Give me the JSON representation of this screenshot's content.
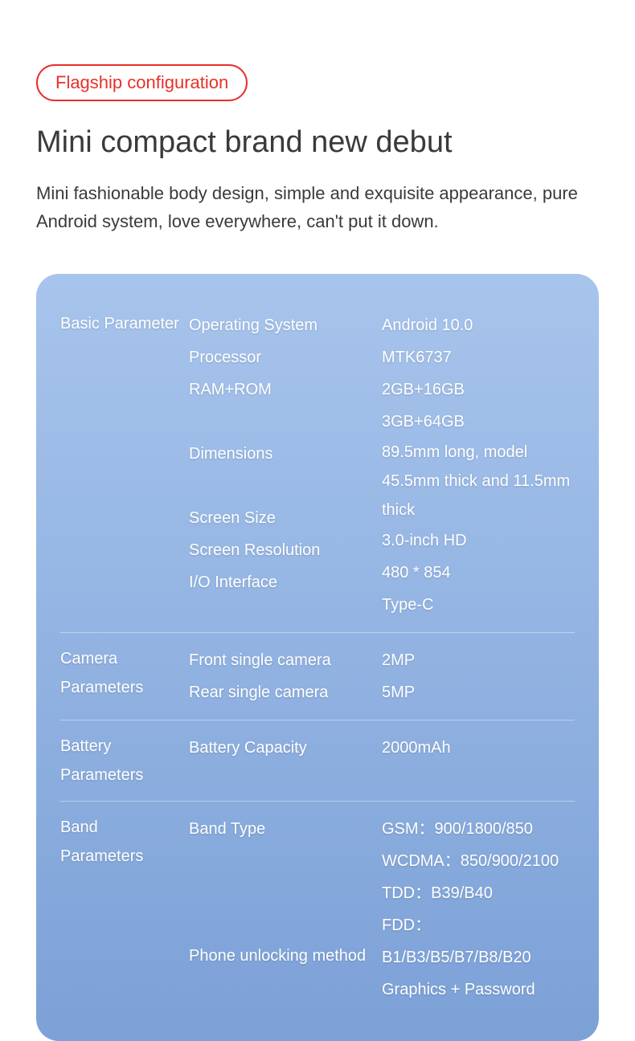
{
  "colors": {
    "badge_border": "#e8302a",
    "badge_text": "#e8302a",
    "title": "#3a3a3a",
    "subtitle": "#3a3a3a",
    "card_bg_top": "#a7c4ec",
    "card_bg_bottom": "#7ca1d7",
    "card_text": "#ffffff"
  },
  "badge": "Flagship configuration",
  "title": "Mini compact brand new debut",
  "subtitle": "Mini fashionable body design, simple and exquisite appearance, pure Android system, love everywhere, can't put it down.",
  "sections": [
    {
      "heading": "Basic Parameter",
      "rows": [
        {
          "label": "Operating System",
          "value": "Android 10.0"
        },
        {
          "label": "Processor",
          "value": "MTK6737"
        },
        {
          "label": "RAM+ROM",
          "value": "2GB+16GB"
        },
        {
          "label": "",
          "value": "3GB+64GB"
        },
        {
          "label": "Dimensions",
          "value": "89.5mm long, model 45.5mm thick and 11.5mm thick"
        },
        {
          "label": "Screen Size",
          "value": "3.0-inch HD"
        },
        {
          "label": "Screen Resolution",
          "value": "480 * 854"
        },
        {
          "label": "I/O Interface",
          "value": "Type-C"
        }
      ]
    },
    {
      "heading": "Camera Parameters",
      "rows": [
        {
          "label": "Front single camera",
          "value": "2MP"
        },
        {
          "label": "Rear single camera",
          "value": "5MP"
        }
      ]
    },
    {
      "heading": "Battery Parameters",
      "rows": [
        {
          "label": "Battery Capacity",
          "value": "2000mAh"
        }
      ]
    },
    {
      "heading": "Band Parameters",
      "rows": [
        {
          "label": "Band Type",
          "value": "GSM：900/1800/850"
        },
        {
          "label": "",
          "value": "WCDMA：850/900/2100"
        },
        {
          "label": "",
          "value": "TDD：B39/B40"
        },
        {
          "label": "",
          "value": "FDD：B1/B3/B5/B7/B8/B20"
        },
        {
          "label": "Phone unlocking method",
          "value": "Graphics + Password"
        }
      ]
    }
  ]
}
